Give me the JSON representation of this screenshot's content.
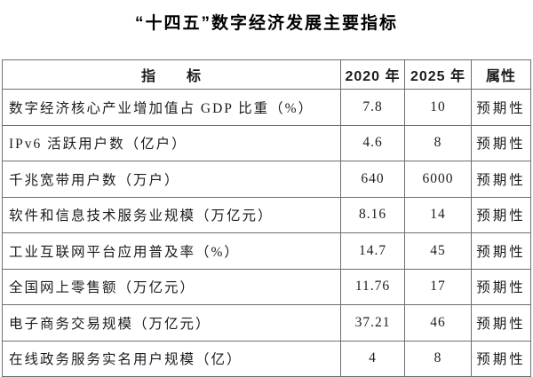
{
  "title": "“十四五”数字经济发展主要指标",
  "table": {
    "headers": {
      "indicator": "指　　标",
      "y2020": "2020 年",
      "y2025": "2025 年",
      "attribute": "属性"
    },
    "rows": [
      {
        "indicator": "数字经济核心产业增加值占 GDP 比重（%）",
        "y2020": "7.8",
        "y2025": "10",
        "attribute": "预期性"
      },
      {
        "indicator": "IPv6 活跃用户数（亿户）",
        "y2020": "4.6",
        "y2025": "8",
        "attribute": "预期性"
      },
      {
        "indicator": "千兆宽带用户数（万户）",
        "y2020": "640",
        "y2025": "6000",
        "attribute": "预期性"
      },
      {
        "indicator": "软件和信息技术服务业规模（万亿元）",
        "y2020": "8.16",
        "y2025": "14",
        "attribute": "预期性"
      },
      {
        "indicator": "工业互联网平台应用普及率（%）",
        "y2020": "14.7",
        "y2025": "45",
        "attribute": "预期性"
      },
      {
        "indicator": "全国网上零售额（万亿元）",
        "y2020": "11.76",
        "y2025": "17",
        "attribute": "预期性"
      },
      {
        "indicator": "电子商务交易规模（万亿元）",
        "y2020": "37.21",
        "y2025": "46",
        "attribute": "预期性"
      },
      {
        "indicator": "在线政务服务实名用户规模（亿）",
        "y2020": "4",
        "y2025": "8",
        "attribute": "预期性"
      }
    ]
  },
  "colors": {
    "background": "#ffffff",
    "border": "#6e6e6e",
    "text": "#1c1c1c"
  }
}
